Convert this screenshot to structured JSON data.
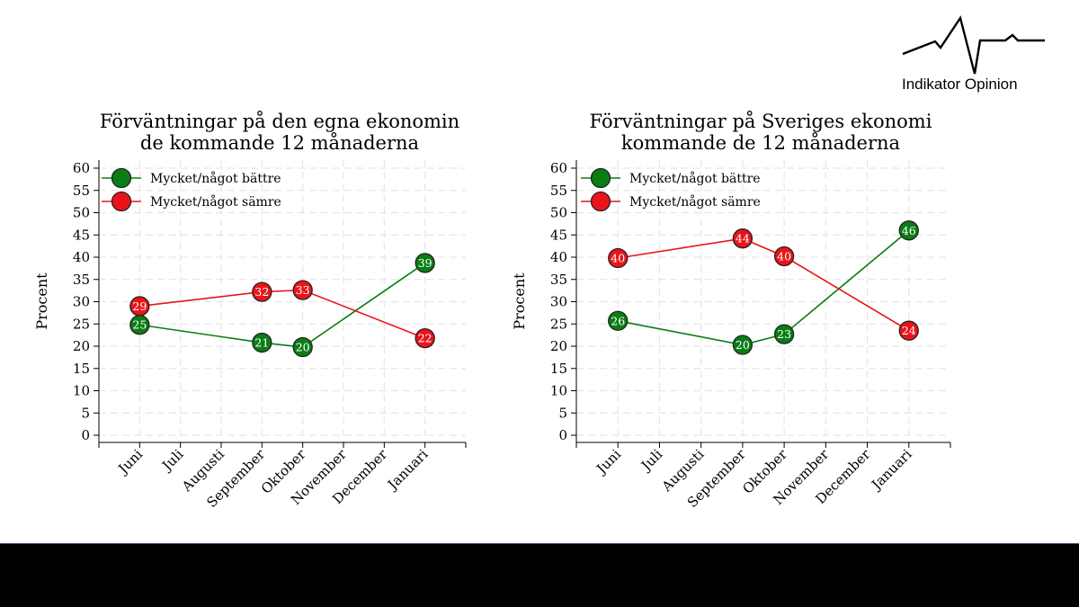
{
  "brand": {
    "name": "Indikator Opinion",
    "logo_icon": "pulse-line-icon"
  },
  "colors": {
    "better": "#0a7d14",
    "worse": "#e8141a",
    "marker_stroke": "#222222",
    "grid": "#e6e6e6",
    "bottom_bar": "#000000"
  },
  "chart_data": [
    {
      "type": "line",
      "title": [
        "Förväntningar på den egna ekonomin",
        "de kommande 12 månaderna"
      ],
      "xlabel": "",
      "ylabel": "Procent",
      "categories": [
        "Juni",
        "Juli",
        "Augusti",
        "September",
        "Oktober",
        "November",
        "December",
        "Januari"
      ],
      "ylim": [
        0,
        60
      ],
      "yticks": [
        0,
        5,
        10,
        15,
        20,
        25,
        30,
        35,
        40,
        45,
        50,
        55,
        60
      ],
      "grid": true,
      "legend_position": "top-left",
      "series": [
        {
          "name": "Mycket/något bättre",
          "color": "#0a7d14",
          "points": [
            {
              "x": "Juni",
              "y": 24.8,
              "label": "25"
            },
            {
              "x": "September",
              "y": 20.8,
              "label": "21"
            },
            {
              "x": "Oktober",
              "y": 19.8,
              "label": "20"
            },
            {
              "x": "Januari",
              "y": 38.7,
              "label": "39"
            }
          ]
        },
        {
          "name": "Mycket/något sämre",
          "color": "#e8141a",
          "points": [
            {
              "x": "Juni",
              "y": 29.0,
              "label": "29"
            },
            {
              "x": "September",
              "y": 32.2,
              "label": "32"
            },
            {
              "x": "Oktober",
              "y": 32.6,
              "label": "33"
            },
            {
              "x": "Januari",
              "y": 21.8,
              "label": "22"
            }
          ]
        }
      ]
    },
    {
      "type": "line",
      "title": [
        "Förväntningar på Sveriges ekonomi",
        "kommande de 12 månaderna"
      ],
      "xlabel": "",
      "ylabel": "Procent",
      "categories": [
        "Juni",
        "Juli",
        "Augusti",
        "September",
        "Oktober",
        "November",
        "December",
        "Januari"
      ],
      "ylim": [
        0,
        60
      ],
      "yticks": [
        0,
        5,
        10,
        15,
        20,
        25,
        30,
        35,
        40,
        45,
        50,
        55,
        60
      ],
      "grid": true,
      "legend_position": "top-left",
      "series": [
        {
          "name": "Mycket/något bättre",
          "color": "#0a7d14",
          "points": [
            {
              "x": "Juni",
              "y": 25.7,
              "label": "26"
            },
            {
              "x": "September",
              "y": 20.3,
              "label": "20"
            },
            {
              "x": "Oktober",
              "y": 22.7,
              "label": "23"
            },
            {
              "x": "Januari",
              "y": 46.0,
              "label": "46"
            }
          ]
        },
        {
          "name": "Mycket/något sämre",
          "color": "#e8141a",
          "points": [
            {
              "x": "Juni",
              "y": 39.8,
              "label": "40"
            },
            {
              "x": "September",
              "y": 44.2,
              "label": "44"
            },
            {
              "x": "Oktober",
              "y": 40.2,
              "label": "40"
            },
            {
              "x": "Januari",
              "y": 23.5,
              "label": "24"
            }
          ]
        }
      ]
    }
  ]
}
